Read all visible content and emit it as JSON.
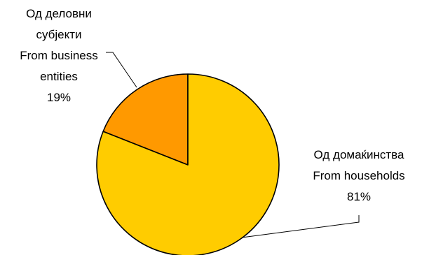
{
  "chart_data": {
    "type": "pie",
    "slices": [
      {
        "label_lines": [
          "Од деловни",
          "субјекти",
          "From business",
          "entities"
        ],
        "value_text": "19%",
        "value": 19,
        "color": "#FF9900"
      },
      {
        "label_lines": [
          "Од домаќинства",
          "From households"
        ],
        "value_text": "81%",
        "value": 81,
        "color": "#FFCC00"
      }
    ],
    "title": "",
    "legend": "none"
  }
}
